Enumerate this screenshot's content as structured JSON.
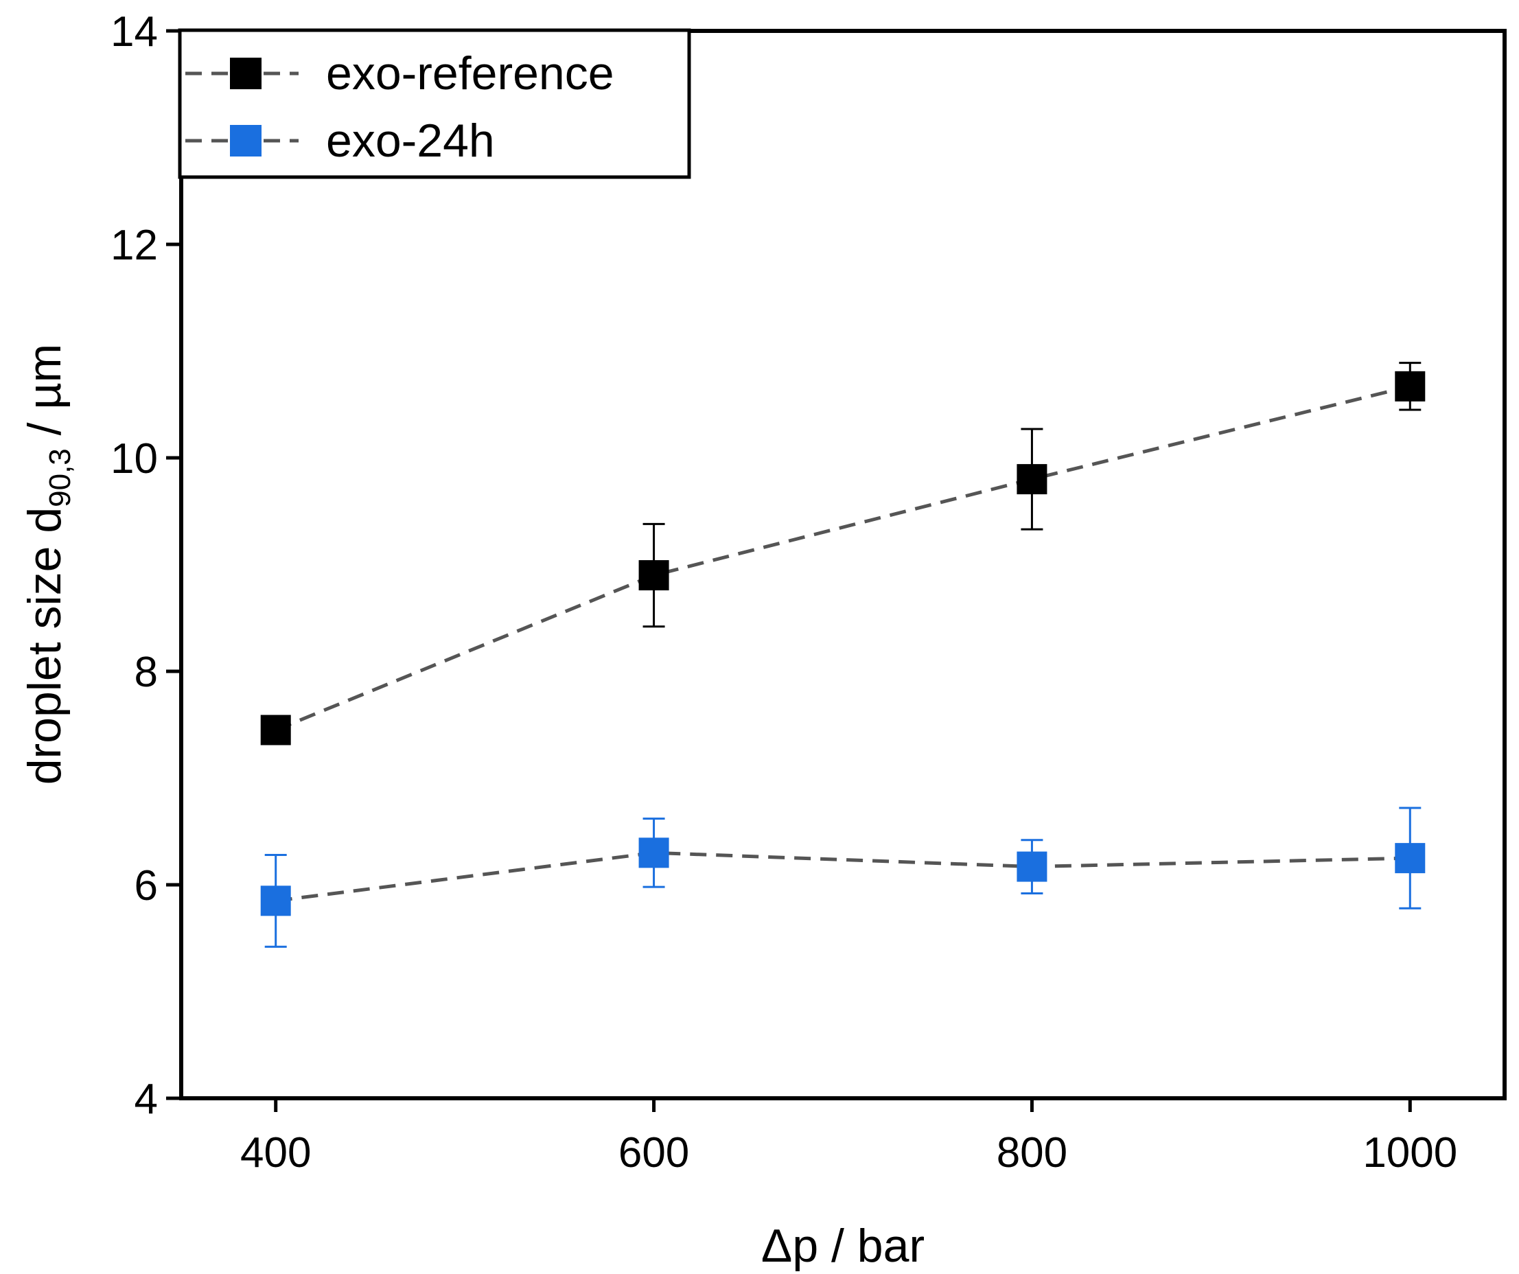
{
  "chart_data": {
    "type": "scatter",
    "title": "",
    "xlabel": "Δp / bar",
    "ylabel": {
      "main": "droplet size d",
      "subscript": "90,3",
      "unit": " / µm"
    },
    "xlim": [
      350,
      1050
    ],
    "ylim": [
      4,
      14
    ],
    "x_ticks": [
      "400",
      "600",
      "800",
      "1000"
    ],
    "y_ticks": [
      "4",
      "6",
      "8",
      "10",
      "12",
      "14"
    ],
    "grid": false,
    "legend_position": "top-left",
    "series": [
      {
        "name": "exo-reference",
        "color": "#000000",
        "line_color": "#555555",
        "line_style": "dashed",
        "marker": "square",
        "x": [
          400,
          600,
          800,
          1000
        ],
        "y": [
          7.45,
          8.9,
          9.8,
          10.67
        ],
        "error": [
          0.0,
          0.48,
          0.47,
          0.22
        ]
      },
      {
        "name": "exo-24h",
        "color": "#1a6fdf",
        "line_color": "#555555",
        "line_style": "dashed",
        "marker": "square",
        "x": [
          400,
          600,
          800,
          1000
        ],
        "y": [
          5.85,
          6.3,
          6.17,
          6.25
        ],
        "error": [
          0.43,
          0.32,
          0.25,
          0.47
        ]
      }
    ]
  }
}
